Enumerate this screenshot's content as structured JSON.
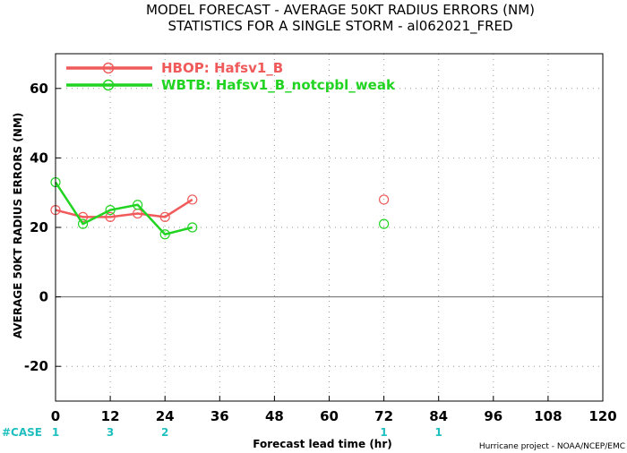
{
  "colors": {
    "hbop": "#f05a5a",
    "wbtb": "#22d422",
    "case": "#1fbfbf",
    "grid": "#999999",
    "zero_line": "#666666"
  },
  "chart_data": {
    "type": "line",
    "title": "MODEL FORECAST - AVERAGE 50KT RADIUS ERRORS (NM)",
    "subtitle": "STATISTICS FOR A SINGLE STORM - al062021_FRED",
    "xlabel": "Forecast lead time (hr)",
    "ylabel": "AVERAGE 50KT RADIUS ERRORS (NM)",
    "xlim": [
      0,
      120
    ],
    "ylim": [
      -30,
      70
    ],
    "xticks": [
      0,
      12,
      24,
      36,
      48,
      60,
      72,
      84,
      96,
      108,
      120
    ],
    "yticks": [
      -20,
      0,
      20,
      40,
      60
    ],
    "grid": true,
    "legend_position": "top-left",
    "series": [
      {
        "name": "HBOP: Hafsv1_B",
        "color_key": "hbop",
        "points": [
          {
            "x": 0,
            "y": 25
          },
          {
            "x": 6,
            "y": 23
          },
          {
            "x": 12,
            "y": 23
          },
          {
            "x": 18,
            "y": 24
          },
          {
            "x": 24,
            "y": 23
          },
          {
            "x": 30,
            "y": 28
          },
          {
            "x": 72,
            "y": 28
          }
        ]
      },
      {
        "name": "WBTB: Hafsv1_B_notcpbl_weak",
        "color_key": "wbtb",
        "points": [
          {
            "x": 0,
            "y": 33
          },
          {
            "x": 6,
            "y": 21
          },
          {
            "x": 12,
            "y": 25
          },
          {
            "x": 18,
            "y": 26.5
          },
          {
            "x": 24,
            "y": 18
          },
          {
            "x": 30,
            "y": 20
          },
          {
            "x": 72,
            "y": 21
          }
        ]
      }
    ],
    "case_label": "#CASE",
    "case_counts": [
      {
        "x": 0,
        "count": "1"
      },
      {
        "x": 12,
        "count": "3"
      },
      {
        "x": 24,
        "count": "2"
      },
      {
        "x": 72,
        "count": "1"
      },
      {
        "x": 84,
        "count": "1"
      }
    ],
    "credit": "Hurricane project - NOAA/NCEP/EMC"
  }
}
